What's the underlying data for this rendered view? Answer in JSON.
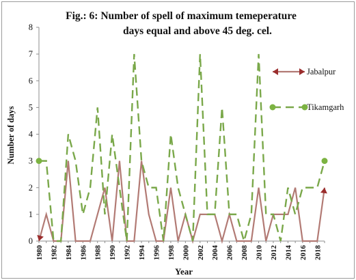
{
  "chart_data": {
    "type": "line",
    "title_line1": "Fig.: 6:  Number of spell of maximum temeperature",
    "title_line2": "days equal and above 45 deg. cel.",
    "xlabel": "Year",
    "ylabel": "Number of days",
    "ylim": [
      0,
      8
    ],
    "yticks": [
      "0",
      "1",
      "2",
      "3",
      "4",
      "5",
      "6",
      "7",
      "8"
    ],
    "xticks": [
      "1980",
      "1982",
      "1984",
      "1986",
      "1988",
      "1990",
      "1992",
      "1994",
      "1996",
      "1998",
      "2000",
      "2002",
      "2004",
      "2006",
      "2008",
      "2010",
      "2012",
      "2014",
      "2016",
      "2018"
    ],
    "legend_position": "right",
    "x": [
      1980,
      1981,
      1982,
      1983,
      1984,
      1985,
      1986,
      1987,
      1988,
      1989,
      1990,
      1991,
      1992,
      1993,
      1994,
      1995,
      1996,
      1997,
      1998,
      1999,
      2000,
      2001,
      2002,
      2003,
      2004,
      2005,
      2006,
      2007,
      2008,
      2009,
      2010,
      2011,
      2012,
      2013,
      2014,
      2015,
      2016,
      2017,
      2018,
      2019
    ],
    "series": [
      {
        "name": "Jabalpur",
        "color": "#b27a74",
        "marker_color": "#9b2d2d",
        "style": "solid",
        "values": [
          0,
          1,
          0,
          0,
          3,
          0,
          0,
          0,
          1,
          2,
          0,
          3,
          0,
          0,
          3,
          1,
          0,
          0,
          2,
          0,
          1,
          0,
          1,
          1,
          1,
          0,
          1,
          0,
          0,
          0,
          2,
          0,
          1,
          1,
          1,
          2,
          0,
          0,
          0,
          2
        ]
      },
      {
        "name": "Tikamgarh",
        "color": "#7aa84a",
        "marker_color": "#7cb342",
        "style": "dashed",
        "values": [
          3,
          3,
          0,
          0,
          4,
          3,
          1,
          2,
          5,
          1,
          4,
          2,
          0,
          7,
          3,
          2,
          2,
          0,
          4,
          2,
          1,
          0,
          7,
          1,
          1,
          5,
          1,
          1,
          0,
          1,
          7,
          1,
          1,
          0,
          2,
          1,
          2,
          2,
          2,
          3
        ]
      }
    ]
  }
}
